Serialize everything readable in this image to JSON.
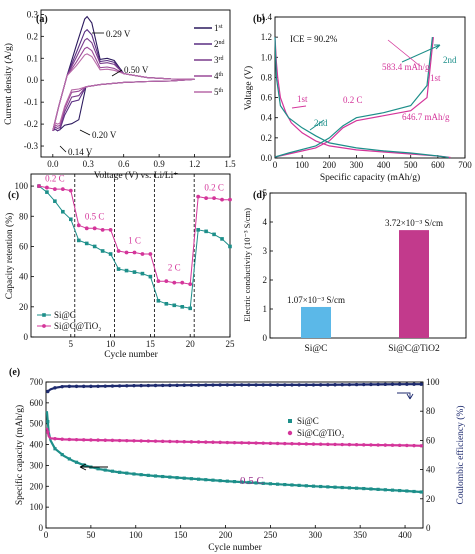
{
  "colors": {
    "a_cycles": [
      "#2c1a5e",
      "#5a2f82",
      "#7a3b8c",
      "#9a4a98",
      "#b86aa8"
    ],
    "magenta": "#d4359a",
    "teal": "#1d8f8a",
    "navy": "#1d2a6e",
    "bar_blue": "#5bb8e8",
    "bar_magenta": "#c23a8c",
    "black": "#000000"
  },
  "chart_data": [
    {
      "panel": "(a)",
      "type": "line",
      "xlabel": "Voltage (V) vs. Li/Li⁺",
      "ylabel": "Current density (A/g)",
      "xlim": [
        -0.1,
        1.5
      ],
      "ylim": [
        -0.35,
        0.32
      ],
      "xticks": [
        "0.0",
        "0.3",
        "0.6",
        "0.9",
        "1.2",
        "1.5"
      ],
      "yticks": [
        "-0.3",
        "-0.2",
        "-0.1",
        "0.0",
        "0.1",
        "0.2",
        "0.3"
      ],
      "legend": [
        "1st",
        "2nd",
        "3rd",
        "4th",
        "5th"
      ],
      "annotations": [
        "0.29 V",
        "0.50 V",
        "0.20 V",
        "0.14 V"
      ],
      "series": [
        {
          "name": "1st",
          "peak_anodic": [
            0.29,
            0.29
          ],
          "peak_50": 0.1,
          "cathodic_min": [
            0.04,
            -0.23
          ],
          "cathodic_mid": [
            0.13,
            -0.18
          ]
        },
        {
          "name": "2nd",
          "peak_anodic": [
            0.29,
            0.23
          ],
          "peak_50": 0.09,
          "cathodic_min": [
            0.04,
            -0.23
          ],
          "cathodic_mid": [
            0.2,
            -0.09
          ]
        },
        {
          "name": "3rd",
          "peak_anodic": [
            0.29,
            0.19
          ],
          "peak_50": 0.08,
          "cathodic_min": [
            0.04,
            -0.22
          ],
          "cathodic_mid": [
            0.2,
            -0.07
          ]
        },
        {
          "name": "4th",
          "peak_anodic": [
            0.29,
            0.15
          ],
          "peak_50": 0.06,
          "cathodic_min": [
            0.04,
            -0.21
          ],
          "cathodic_mid": [
            0.2,
            -0.05
          ]
        },
        {
          "name": "5th",
          "peak_anodic": [
            0.29,
            0.12
          ],
          "peak_50": 0.05,
          "cathodic_min": [
            0.04,
            -0.2
          ],
          "cathodic_mid": [
            0.2,
            -0.04
          ]
        }
      ]
    },
    {
      "panel": "(b)",
      "type": "line",
      "xlabel": "Specific capacity (mAh/g)",
      "ylabel": "Voltage (V)",
      "xlim": [
        0,
        700
      ],
      "ylim": [
        0,
        1.4
      ],
      "xticks": [
        "0",
        "100",
        "200",
        "300",
        "400",
        "500",
        "600",
        "700"
      ],
      "yticks": [
        "0.0",
        "0.2",
        "0.4",
        "0.6",
        "0.8",
        "1.0",
        "1.2",
        "1.4"
      ],
      "annotations": [
        "ICE = 90.2%",
        "583.4 mAh/g",
        "646.7 mAh/g",
        "0.2 C",
        "1st",
        "2nd",
        "2nd",
        "1st"
      ],
      "series": [
        {
          "name": "1st discharge",
          "x": [
            0,
            5,
            10,
            20,
            40,
            60,
            100,
            150,
            200,
            300,
            400,
            500,
            600,
            646.7
          ],
          "y": [
            1.2,
            0.95,
            0.8,
            0.6,
            0.45,
            0.35,
            0.25,
            0.17,
            0.12,
            0.08,
            0.06,
            0.04,
            0.02,
            0.005
          ]
        },
        {
          "name": "1st charge",
          "x": [
            0,
            50,
            150,
            200,
            250,
            300,
            400,
            500,
            560,
            583.4
          ],
          "y": [
            0.01,
            0.04,
            0.1,
            0.17,
            0.3,
            0.37,
            0.42,
            0.47,
            0.6,
            1.2
          ]
        },
        {
          "name": "2nd discharge",
          "x": [
            0,
            5,
            20,
            50,
            100,
            150,
            200,
            300,
            400,
            500,
            600,
            640
          ],
          "y": [
            1.2,
            0.8,
            0.52,
            0.4,
            0.3,
            0.22,
            0.15,
            0.1,
            0.07,
            0.05,
            0.02,
            0.005
          ]
        },
        {
          "name": "2nd charge",
          "x": [
            0,
            50,
            150,
            200,
            250,
            300,
            400,
            500,
            560,
            580
          ],
          "y": [
            0.01,
            0.05,
            0.12,
            0.2,
            0.32,
            0.4,
            0.45,
            0.52,
            0.72,
            1.2
          ]
        }
      ]
    },
    {
      "panel": "(c)",
      "type": "line",
      "xlabel": "Cycle number",
      "ylabel": "Capacity retention (%)",
      "xlim": [
        0,
        25
      ],
      "ylim": [
        0,
        100
      ],
      "xticks": [
        "5",
        "10",
        "15",
        "20",
        "25"
      ],
      "yticks": [
        "0",
        "20",
        "40",
        "60",
        "80",
        "100"
      ],
      "rate_labels": [
        "0.2 C",
        "0.5 C",
        "1 C",
        "2 C",
        "0.2 C"
      ],
      "legend": [
        "Si@C",
        "Si@C@TiO₂"
      ],
      "series": [
        {
          "name": "Si@C",
          "x": [
            1,
            2,
            3,
            4,
            5,
            6,
            7,
            8,
            9,
            10,
            11,
            12,
            13,
            14,
            15,
            16,
            17,
            18,
            19,
            20,
            21,
            22,
            23,
            24,
            25
          ],
          "y": [
            100,
            96,
            90,
            83,
            78,
            64,
            62,
            60,
            57,
            55,
            45,
            44,
            43,
            42,
            40,
            24,
            22,
            21,
            20,
            19,
            71,
            70,
            68,
            65,
            60
          ]
        },
        {
          "name": "Si@C@TiO₂",
          "x": [
            1,
            2,
            3,
            4,
            5,
            6,
            7,
            8,
            9,
            10,
            11,
            12,
            13,
            14,
            15,
            16,
            17,
            18,
            19,
            20,
            21,
            22,
            23,
            24,
            25
          ],
          "y": [
            100,
            99,
            98,
            98,
            97,
            74,
            72,
            72,
            71,
            71,
            57,
            56,
            56,
            55,
            55,
            37,
            37,
            36,
            36,
            35,
            93,
            92,
            92,
            91,
            91
          ]
        }
      ]
    },
    {
      "panel": "(d)",
      "type": "bar",
      "ylabel": "Electric conductivity (10⁻³ S/cm)",
      "ylim": [
        0,
        5
      ],
      "yticks": [
        "0",
        "1",
        "2",
        "3",
        "4",
        "5"
      ],
      "categories": [
        "Si@C",
        "Si@C@TiO2"
      ],
      "values": [
        1.07,
        3.72
      ],
      "value_labels": [
        "1.07×10⁻³ S/cm",
        "3.72×10⁻³ S/cm"
      ]
    },
    {
      "panel": "(e)",
      "type": "scatter",
      "xlabel": "Cycle number",
      "ylabel": "Specific capacity (mAh/g)",
      "ylabel_right": "Coulombic efficiency (%)",
      "xlim": [
        0,
        420
      ],
      "ylim": [
        0,
        700
      ],
      "ylim_right": [
        0,
        100
      ],
      "xticks": [
        "0",
        "50",
        "100",
        "150",
        "200",
        "250",
        "300",
        "350",
        "400"
      ],
      "yticks": [
        "0",
        "100",
        "200",
        "300",
        "400",
        "500",
        "600",
        "700"
      ],
      "yticks_right": [
        "0",
        "20",
        "40",
        "60",
        "80",
        "100"
      ],
      "legend": [
        "Si@C",
        "Si@C@TiO₂"
      ],
      "annotation": "0.5 C",
      "series": [
        {
          "name": "Si@C",
          "x": [
            1,
            3,
            5,
            10,
            20,
            30,
            40,
            50,
            60,
            80,
            100,
            120,
            150,
            200,
            250,
            300,
            350,
            400,
            420
          ],
          "y": [
            560,
            460,
            420,
            380,
            345,
            322,
            305,
            292,
            282,
            268,
            258,
            250,
            240,
            225,
            212,
            200,
            190,
            178,
            172
          ]
        },
        {
          "name": "Si@C@TiO₂",
          "x": [
            1,
            3,
            5,
            10,
            20,
            50,
            100,
            150,
            200,
            250,
            300,
            350,
            400,
            420
          ],
          "y": [
            480,
            440,
            430,
            428,
            425,
            422,
            418,
            414,
            410,
            406,
            402,
            399,
            396,
            394
          ]
        },
        {
          "name": "Coulombic efficiency",
          "x": [
            1,
            5,
            10,
            20,
            50,
            100,
            200,
            300,
            400,
            420
          ],
          "y": [
            93,
            95,
            96,
            97,
            97,
            97.5,
            98,
            98,
            98.5,
            98.5
          ]
        }
      ]
    }
  ]
}
